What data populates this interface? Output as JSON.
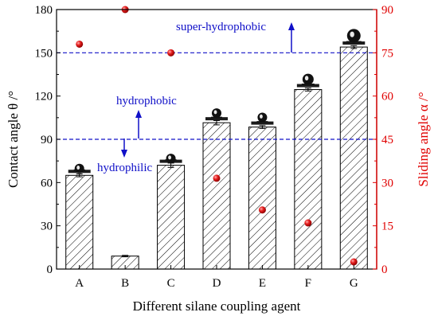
{
  "chart_data": {
    "type": "bar",
    "categories": [
      "A",
      "B",
      "C",
      "D",
      "E",
      "F",
      "G"
    ],
    "xlabel": "Different silane coupling agent",
    "ylabel": "Contact angle θ /°",
    "ylabel_right": "Sliding angle α /°",
    "ylim": [
      0,
      180
    ],
    "yticks": [
      0,
      30,
      60,
      90,
      120,
      150,
      180
    ],
    "ylim_right": [
      0,
      90
    ],
    "yticks_right": [
      0,
      15,
      30,
      45,
      60,
      75,
      90
    ],
    "series": [
      {
        "name": "Contact angle",
        "axis": "left",
        "kind": "bar",
        "values": [
          65,
          9,
          72,
          101.5,
          98.5,
          124.5,
          154
        ],
        "errors": [
          1,
          0.5,
          1.5,
          1.5,
          1,
          1,
          1
        ]
      },
      {
        "name": "Sliding angle",
        "axis": "right",
        "kind": "scatter",
        "values": [
          78,
          90,
          75,
          31.5,
          20.5,
          16,
          2.5
        ]
      }
    ],
    "reference_lines": [
      {
        "y": 150,
        "axis": "left",
        "label": "super-hydrophobic"
      },
      {
        "y": 90,
        "axis": "left",
        "labels": [
          "hydrophobic",
          "hydrophilic"
        ]
      }
    ],
    "grid": false,
    "colors": {
      "bar_fill": "#ffffff",
      "bar_hatch": "#000000",
      "scatter": "#e00000",
      "right_axis": "#e00000",
      "reference": "#1010c8"
    }
  }
}
